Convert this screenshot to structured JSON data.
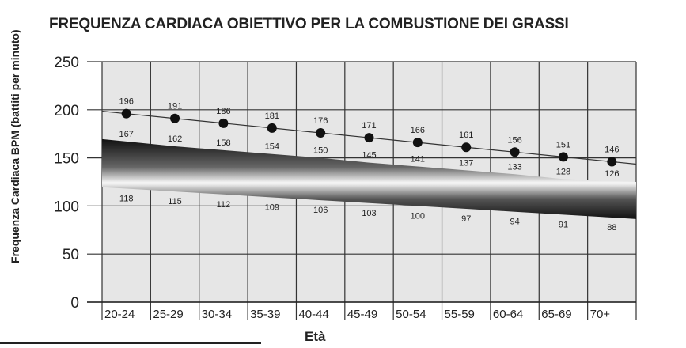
{
  "chart_data": {
    "type": "line",
    "title": "FREQUENZA CARDIACA OBIETTIVO PER LA COMBUSTIONE DEI GRASSI",
    "xlabel": "Età",
    "ylabel": "Frequenza Cardiaca BPM (battiti per minuto)",
    "categories": [
      "20-24",
      "25-29",
      "30-34",
      "35-39",
      "40-44",
      "45-49",
      "50-54",
      "55-59",
      "60-64",
      "65-69",
      "70+"
    ],
    "ylim": [
      0,
      250
    ],
    "yticks": [
      0,
      50,
      100,
      150,
      200,
      250
    ],
    "grid": true,
    "series": [
      {
        "values": [
          196,
          191,
          186,
          181,
          176,
          171,
          166,
          161,
          156,
          151,
          146
        ],
        "style": "line-with-markers"
      },
      {
        "values": [
          167,
          162,
          158,
          154,
          150,
          145,
          141,
          137,
          133,
          128,
          126
        ],
        "style": "band-upper"
      },
      {
        "values": [
          118,
          115,
          112,
          109,
          106,
          103,
          100,
          97,
          94,
          91,
          88
        ],
        "style": "band-lower"
      }
    ],
    "colors": {
      "plot_bg": "#e6e6e6",
      "grid": "#333333",
      "marker": "#111111"
    }
  }
}
